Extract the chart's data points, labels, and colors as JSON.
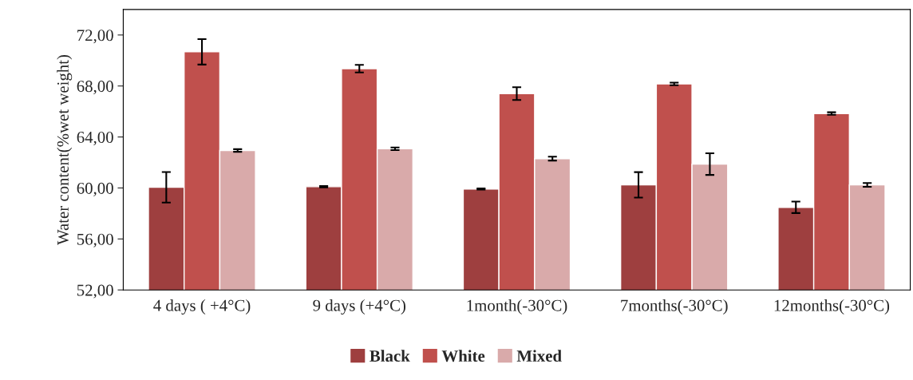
{
  "chart_data": {
    "type": "bar",
    "ylabel": "Water content(%wet weight)",
    "categories": [
      "4 days ( +4°C)",
      "9 days (+4°C)",
      "1month(-30°C)",
      "7months(-30°C)",
      "12months(-30°C)"
    ],
    "series": [
      {
        "name": "Black",
        "color": "#9e3f3f",
        "values": [
          60.05,
          60.1,
          59.92,
          60.24,
          58.48
        ],
        "errors": [
          1.2,
          0.05,
          0.05,
          1.0,
          0.45
        ]
      },
      {
        "name": "White",
        "color": "#c0504d",
        "values": [
          70.68,
          69.36,
          67.4,
          68.16,
          65.84
        ],
        "errors": [
          1.0,
          0.3,
          0.5,
          0.1,
          0.1
        ]
      },
      {
        "name": "Mixed",
        "color": "#d9aaaa",
        "values": [
          62.94,
          63.07,
          62.3,
          61.87,
          60.24
        ],
        "errors": [
          0.1,
          0.1,
          0.15,
          0.85,
          0.15
        ]
      }
    ],
    "ylim": [
      52,
      74
    ],
    "yticks": [
      {
        "value": 52,
        "label": "52,00"
      },
      {
        "value": 56,
        "label": "56,00"
      },
      {
        "value": 60,
        "label": "60,00"
      },
      {
        "value": 64,
        "label": "64,00"
      },
      {
        "value": 68,
        "label": "68,00"
      },
      {
        "value": 72,
        "label": "72,00"
      }
    ],
    "legend": "bottom",
    "grid": false
  }
}
